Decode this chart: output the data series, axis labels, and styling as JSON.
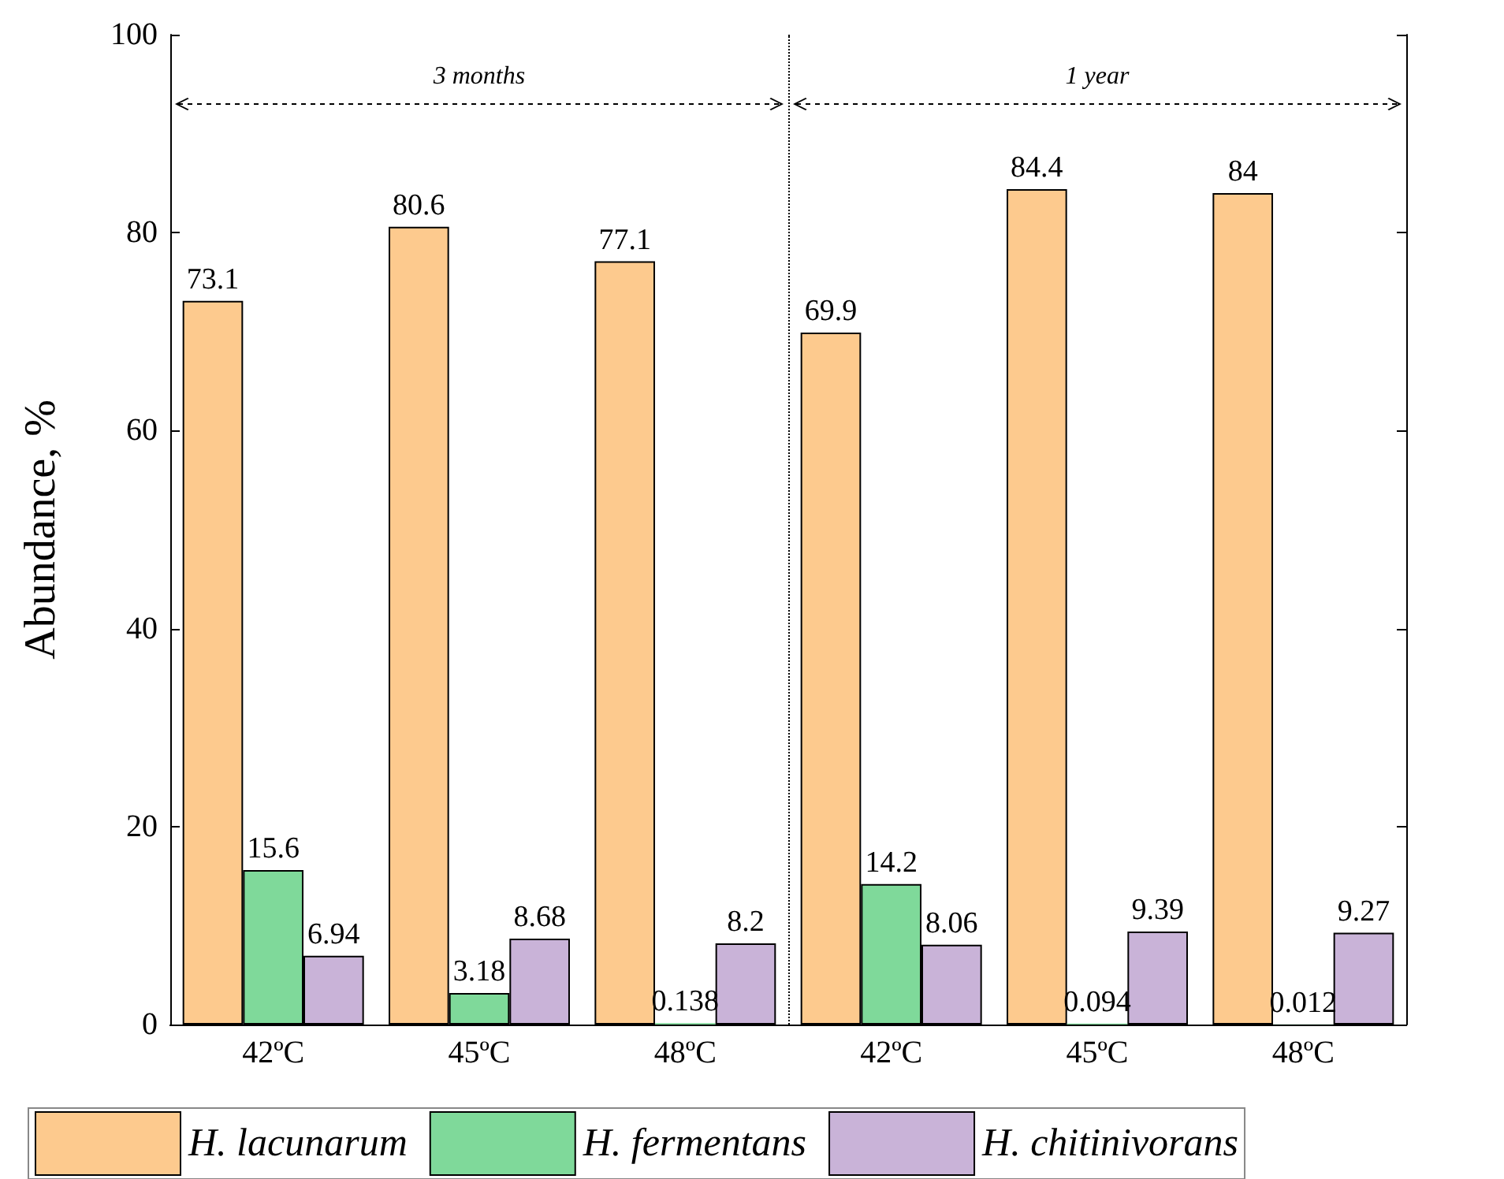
{
  "chart_data": {
    "type": "bar",
    "ylabel": "Abundance, %",
    "categories": [
      "42ºC",
      "45ºC",
      "48ºC",
      "42ºC",
      "45ºC",
      "48ºC"
    ],
    "series": [
      {
        "name": "H. lacunarum",
        "color": "#fdca8e",
        "values": [
          73.1,
          80.6,
          77.1,
          69.9,
          84.4,
          84
        ]
      },
      {
        "name": "H. fermentans",
        "color": "#7fd99a",
        "values": [
          15.6,
          3.18,
          0.138,
          14.2,
          0.094,
          0.012
        ]
      },
      {
        "name": "H. chitinivorans",
        "color": "#c9b3d8",
        "values": [
          6.94,
          8.68,
          8.2,
          8.06,
          9.39,
          9.27
        ]
      }
    ],
    "ylim": [
      0,
      100
    ],
    "yticks": [
      0,
      20,
      40,
      60,
      80,
      100
    ],
    "data_labels": true,
    "legend": "bottom",
    "grid": false,
    "annotations": [
      "3 months",
      "1 year"
    ]
  }
}
